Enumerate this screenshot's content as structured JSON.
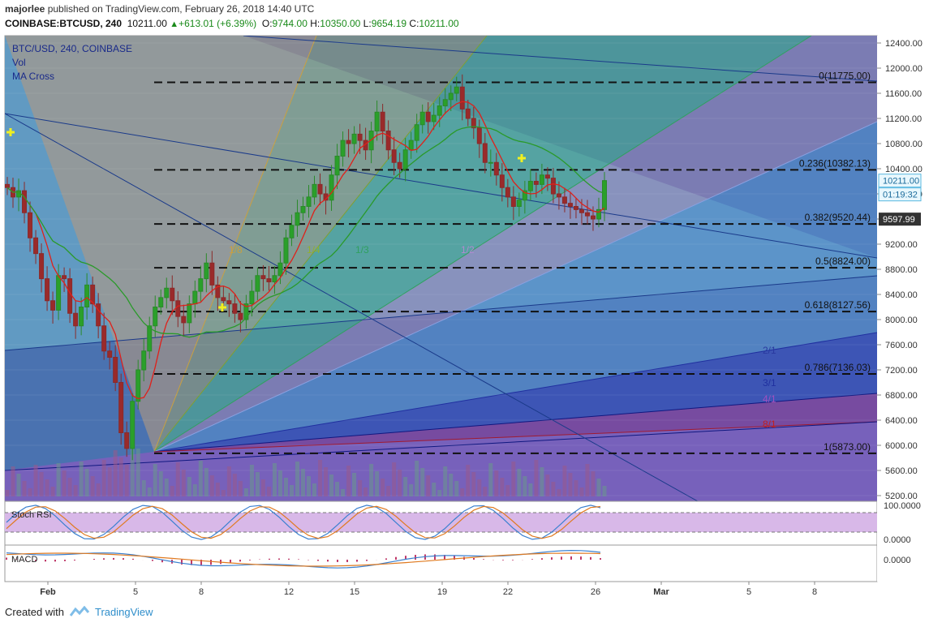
{
  "header": {
    "author": "majorlee",
    "published_text": "published on TradingView.com, February 26, 2018 14:40 UTC",
    "symbol": "COINBASE:BTCUSD, 240",
    "last": "10211.00",
    "change": "+613.01 (+6.39%)",
    "open_label": "O:",
    "open": "9744.00",
    "high_label": "H:",
    "high": "10350.00",
    "low_label": "L:",
    "low": "9654.19",
    "close_label": "C:",
    "close": "10211.00"
  },
  "legend": {
    "title": "BTC/USD, 240, COINBASE",
    "vol": "Vol",
    "ma": "MA Cross"
  },
  "footer": {
    "created_with": "Created with",
    "brand": "TradingView"
  },
  "colors": {
    "ma_fast": "#e0201a",
    "ma_slow": "#2a9a2a",
    "up": "#2a8a2a",
    "down": "#8a2a2a",
    "stoch_k": "#3a80d0",
    "stoch_d": "#e07a20",
    "macd": "#3a80d0",
    "signal": "#e07a20"
  },
  "chart_data": {
    "type": "candlestick",
    "y_axis_ticks": [
      "12400.00",
      "12000.00",
      "11600.00",
      "11200.00",
      "10800.00",
      "10400.00",
      "10000.00",
      "9600.00",
      "9200.00",
      "8800.00",
      "8400.00",
      "8000.00",
      "7600.00",
      "7200.00",
      "6800.00",
      "6400.00",
      "6000.00",
      "5600.00",
      "5200.00"
    ],
    "ylim": [
      5100,
      12550
    ],
    "last_price_label": "10211.00",
    "countdown_label": "01:19:32",
    "level_label": "9597.99",
    "x_ticks": [
      {
        "label": "Feb",
        "day": 1
      },
      {
        "label": "5",
        "day": 5
      },
      {
        "label": "8",
        "day": 8
      },
      {
        "label": "12",
        "day": 12
      },
      {
        "label": "15",
        "day": 15
      },
      {
        "label": "19",
        "day": 19
      },
      {
        "label": "22",
        "day": 22
      },
      {
        "label": "26",
        "day": 26
      },
      {
        "label": "Mar",
        "day": 29
      },
      {
        "label": "5",
        "day": 33
      },
      {
        "label": "8",
        "day": 36
      }
    ],
    "fib_levels": [
      {
        "label": "0(11775.00)",
        "value": 11775
      },
      {
        "label": "0.236(10382.13)",
        "value": 10382.13
      },
      {
        "label": "0.382(9520.44)",
        "value": 9520.44
      },
      {
        "label": "0.5(8824.00)",
        "value": 8824
      },
      {
        "label": "0.618(8127.56)",
        "value": 8127.56
      },
      {
        "label": "0.786(7136.03)",
        "value": 7136.03
      },
      {
        "label": "1(5873.00)",
        "value": 5873
      }
    ],
    "gann_labels": [
      "1/8",
      "1/4",
      "1/3",
      "1/2",
      "2/1",
      "3/1",
      "4/1",
      "8/1"
    ],
    "close_series": [
      10100,
      9950,
      10050,
      9700,
      9300,
      9050,
      8650,
      8300,
      8150,
      8700,
      8650,
      8100,
      7900,
      8200,
      8550,
      8250,
      7900,
      7500,
      7400,
      7000,
      6200,
      5950,
      6700,
      7200,
      7500,
      7900,
      8200,
      8350,
      8500,
      8300,
      8050,
      7950,
      8250,
      8450,
      8650,
      8900,
      8550,
      8350,
      8300,
      8250,
      8100,
      8000,
      8250,
      8450,
      8700,
      8650,
      8600,
      8700,
      8900,
      9300,
      9500,
      9700,
      9800,
      9950,
      10150,
      10000,
      9900,
      10300,
      10600,
      10850,
      10800,
      10950,
      10850,
      10700,
      11000,
      11300,
      11000,
      10700,
      10500,
      10400,
      10700,
      10850,
      11100,
      11300,
      11150,
      11250,
      11400,
      11500,
      11600,
      11700,
      11350,
      11200,
      11050,
      10800,
      10500,
      10500,
      10300,
      10100,
      9950,
      9800,
      9900,
      10050,
      10200,
      10150,
      10300,
      10250,
      10000,
      9950,
      9850,
      9800,
      9750,
      9700,
      9650,
      9600,
      9750,
      10211
    ],
    "stoch_rsi": {
      "ticks": [
        "100.0000",
        "0.0000"
      ],
      "bands": [
        80,
        20
      ]
    },
    "macd": {
      "ticks": [
        "0.0000"
      ]
    }
  }
}
